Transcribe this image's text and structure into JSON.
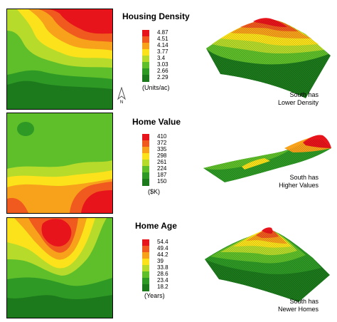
{
  "panels": [
    {
      "title": "Housing Density",
      "legend": [
        "4.87",
        "4.51",
        "4.14",
        "3.77",
        "3.4",
        "3.03",
        "2.66",
        "2.29"
      ],
      "unit": "(Units/ac)",
      "note_line1": "South has",
      "note_line2": "Lower Density"
    },
    {
      "title": "Home Value",
      "legend": [
        "410",
        "372",
        "335",
        "298",
        "261",
        "224",
        "187",
        "150"
      ],
      "unit": "($K)",
      "note_line1": "South has",
      "note_line2": "Higher Values"
    },
    {
      "title": "Home Age",
      "legend": [
        "54.4",
        "49.4",
        "44.2",
        "39",
        "33.8",
        "28.6",
        "23.4",
        "18.2"
      ],
      "unit": "(Years)",
      "note_line1": "South has",
      "note_line2": "Newer Homes"
    }
  ],
  "north_label": "N",
  "colors": {
    "scale": [
      "#e8141b",
      "#f05a1e",
      "#f7a21a",
      "#fbe21b",
      "#b7db2a",
      "#5fbf2a",
      "#2e9a25",
      "#1c7a1c"
    ]
  }
}
